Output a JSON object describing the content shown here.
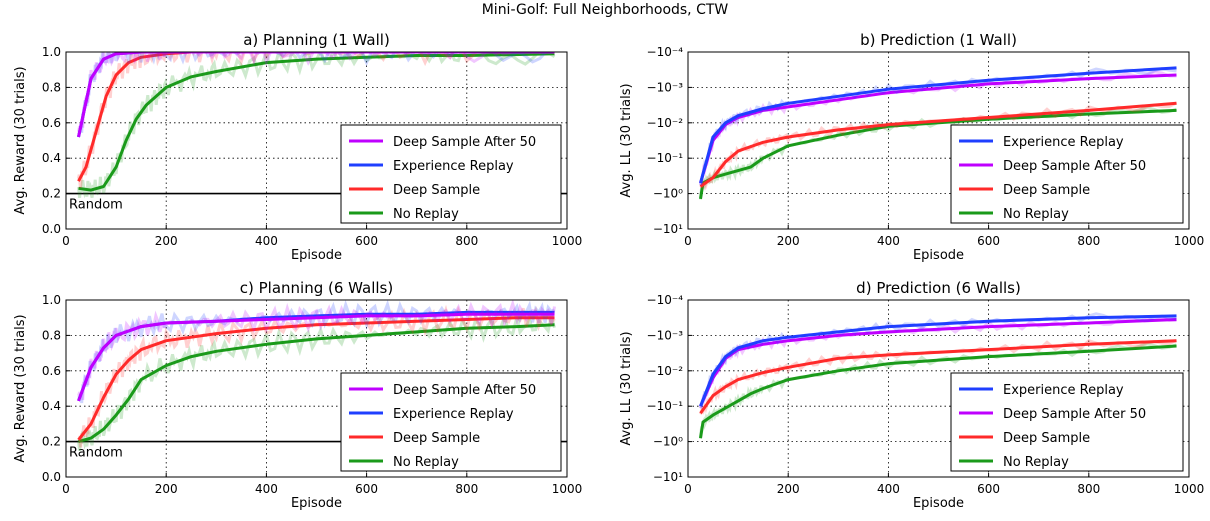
{
  "suptitle": "Mini-Golf: Full Neighborhoods, CTW",
  "chart_data": [
    {
      "type": "line",
      "title": "a) Planning (1 Wall)",
      "xlabel": "Episode",
      "ylabel": "Avg. Reward (30 trials)",
      "xlim": [
        0,
        1000
      ],
      "ylim": [
        0,
        1.0
      ],
      "xticks": [
        "0",
        "200",
        "400",
        "600",
        "800",
        "1000"
      ],
      "yticks": [
        "0.0",
        "0.2",
        "0.4",
        "0.6",
        "0.8",
        "1.0"
      ],
      "grid": true,
      "legend_position": "lower-right",
      "reference_line": {
        "label": "Random",
        "y": 0.2
      },
      "series": [
        {
          "name": "Deep Sample After 50",
          "color": "#bf00ff",
          "x": [
            25,
            50,
            75,
            100,
            150,
            200,
            300,
            400,
            600,
            800,
            975
          ],
          "y": [
            0.52,
            0.85,
            0.96,
            0.99,
            1.0,
            1.0,
            1.0,
            1.0,
            1.0,
            1.0,
            1.0
          ]
        },
        {
          "name": "Experience Replay",
          "color": "#1f3fff",
          "x": [
            25,
            50,
            75,
            100,
            150,
            200,
            300,
            400,
            600,
            800,
            975
          ],
          "y": [
            0.52,
            0.85,
            0.96,
            0.99,
            1.0,
            1.0,
            1.0,
            1.0,
            1.0,
            1.0,
            1.0
          ]
        },
        {
          "name": "Deep Sample",
          "color": "#ff2a2a",
          "x": [
            25,
            40,
            60,
            80,
            100,
            125,
            150,
            200,
            250,
            300,
            400,
            600,
            800,
            975
          ],
          "y": [
            0.27,
            0.35,
            0.55,
            0.75,
            0.87,
            0.94,
            0.97,
            0.99,
            1.0,
            1.0,
            1.0,
            1.0,
            1.0,
            1.0
          ]
        },
        {
          "name": "No Replay",
          "color": "#1a9a1a",
          "x": [
            25,
            50,
            75,
            100,
            120,
            140,
            160,
            180,
            200,
            250,
            300,
            400,
            500,
            600,
            700,
            800,
            975
          ],
          "y": [
            0.23,
            0.22,
            0.24,
            0.35,
            0.5,
            0.62,
            0.7,
            0.75,
            0.8,
            0.86,
            0.89,
            0.94,
            0.96,
            0.97,
            0.98,
            0.98,
            0.99
          ]
        }
      ]
    },
    {
      "type": "line",
      "title": "b) Prediction (1 Wall)",
      "xlabel": "Episode",
      "ylabel": "Avg. LL (30 trials)",
      "xlim": [
        0,
        1000
      ],
      "ylim": [
        1,
        -4
      ],
      "y_scale": "symlog (negative)",
      "xticks": [
        "0",
        "200",
        "400",
        "600",
        "800",
        "1000"
      ],
      "yticks": [
        "−10⁻⁴",
        "−10⁻³",
        "−10⁻²",
        "−10⁻¹",
        "−10⁰",
        "−10¹"
      ],
      "grid": true,
      "legend_position": "lower-right",
      "series": [
        {
          "name": "Experience Replay",
          "color": "#1f3fff",
          "x": [
            25,
            50,
            75,
            100,
            150,
            200,
            300,
            400,
            600,
            800,
            975
          ],
          "y": [
            -0.3,
            -1.6,
            -2.0,
            -2.2,
            -2.4,
            -2.55,
            -2.75,
            -2.95,
            -3.2,
            -3.4,
            -3.55
          ]
        },
        {
          "name": "Deep Sample After 50",
          "color": "#bf00ff",
          "x": [
            25,
            50,
            75,
            100,
            150,
            200,
            300,
            400,
            600,
            800,
            975
          ],
          "y": [
            -0.3,
            -1.5,
            -1.95,
            -2.15,
            -2.35,
            -2.45,
            -2.65,
            -2.85,
            -3.1,
            -3.25,
            -3.35
          ]
        },
        {
          "name": "Deep Sample",
          "color": "#ff2a2a",
          "x": [
            25,
            50,
            75,
            100,
            150,
            200,
            300,
            400,
            600,
            800,
            975
          ],
          "y": [
            -0.2,
            -0.45,
            -0.9,
            -1.2,
            -1.45,
            -1.6,
            -1.8,
            -1.95,
            -2.15,
            -2.35,
            -2.55
          ]
        },
        {
          "name": "No Replay",
          "color": "#1a9a1a",
          "x": [
            25,
            30,
            50,
            75,
            100,
            125,
            150,
            200,
            300,
            400,
            600,
            800,
            975
          ],
          "y": [
            0.15,
            -0.3,
            -0.45,
            -0.55,
            -0.65,
            -0.75,
            -1.0,
            -1.35,
            -1.65,
            -1.9,
            -2.1,
            -2.25,
            -2.35
          ]
        }
      ]
    },
    {
      "type": "line",
      "title": "c) Planning (6 Walls)",
      "xlabel": "Episode",
      "ylabel": "Avg. Reward (30 trials)",
      "xlim": [
        0,
        1000
      ],
      "ylim": [
        0,
        1.0
      ],
      "xticks": [
        "0",
        "200",
        "400",
        "600",
        "800",
        "1000"
      ],
      "yticks": [
        "0.0",
        "0.2",
        "0.4",
        "0.6",
        "0.8",
        "1.0"
      ],
      "grid": true,
      "legend_position": "lower-right",
      "reference_line": {
        "label": "Random",
        "y": 0.2
      },
      "series": [
        {
          "name": "Deep Sample After 50",
          "color": "#bf00ff",
          "x": [
            25,
            50,
            75,
            100,
            150,
            200,
            300,
            400,
            500,
            600,
            700,
            800,
            900,
            975
          ],
          "y": [
            0.43,
            0.62,
            0.73,
            0.8,
            0.85,
            0.87,
            0.88,
            0.89,
            0.9,
            0.91,
            0.91,
            0.92,
            0.92,
            0.92
          ]
        },
        {
          "name": "Experience Replay",
          "color": "#1f3fff",
          "x": [
            25,
            50,
            75,
            100,
            150,
            200,
            300,
            400,
            500,
            600,
            700,
            800,
            900,
            975
          ],
          "y": [
            0.43,
            0.62,
            0.73,
            0.8,
            0.85,
            0.87,
            0.88,
            0.9,
            0.91,
            0.92,
            0.92,
            0.93,
            0.93,
            0.93
          ]
        },
        {
          "name": "Deep Sample",
          "color": "#ff2a2a",
          "x": [
            25,
            50,
            75,
            100,
            125,
            150,
            200,
            250,
            300,
            400,
            500,
            600,
            700,
            800,
            900,
            975
          ],
          "y": [
            0.21,
            0.3,
            0.45,
            0.58,
            0.66,
            0.72,
            0.77,
            0.79,
            0.81,
            0.84,
            0.86,
            0.87,
            0.88,
            0.89,
            0.9,
            0.9
          ]
        },
        {
          "name": "No Replay",
          "color": "#1a9a1a",
          "x": [
            25,
            50,
            75,
            100,
            125,
            150,
            200,
            250,
            300,
            400,
            500,
            600,
            700,
            800,
            900,
            975
          ],
          "y": [
            0.2,
            0.22,
            0.27,
            0.35,
            0.44,
            0.55,
            0.63,
            0.68,
            0.71,
            0.75,
            0.78,
            0.8,
            0.82,
            0.84,
            0.85,
            0.86
          ]
        }
      ]
    },
    {
      "type": "line",
      "title": "d) Prediction (6 Walls)",
      "xlabel": "Episode",
      "ylabel": "Avg. LL (30 trials)",
      "xlim": [
        0,
        1000
      ],
      "ylim": [
        1,
        -4
      ],
      "y_scale": "symlog (negative)",
      "xticks": [
        "0",
        "200",
        "400",
        "600",
        "800",
        "1000"
      ],
      "yticks": [
        "−10⁻⁴",
        "−10⁻³",
        "−10⁻²",
        "−10⁻¹",
        "−10⁰",
        "−10¹"
      ],
      "grid": true,
      "legend_position": "lower-right",
      "series": [
        {
          "name": "Experience Replay",
          "color": "#1f3fff",
          "x": [
            25,
            50,
            75,
            100,
            150,
            200,
            300,
            400,
            600,
            800,
            975
          ],
          "y": [
            -1.0,
            -1.9,
            -2.4,
            -2.65,
            -2.85,
            -2.95,
            -3.1,
            -3.25,
            -3.4,
            -3.5,
            -3.55
          ]
        },
        {
          "name": "Deep Sample After 50",
          "color": "#bf00ff",
          "x": [
            25,
            50,
            75,
            100,
            150,
            200,
            300,
            400,
            600,
            800,
            975
          ],
          "y": [
            -1.0,
            -1.8,
            -2.35,
            -2.6,
            -2.75,
            -2.85,
            -3.0,
            -3.1,
            -3.25,
            -3.35,
            -3.45
          ]
        },
        {
          "name": "Deep Sample",
          "color": "#ff2a2a",
          "x": [
            25,
            50,
            75,
            100,
            150,
            200,
            300,
            400,
            600,
            800,
            975
          ],
          "y": [
            -0.8,
            -1.3,
            -1.55,
            -1.75,
            -1.95,
            -2.1,
            -2.35,
            -2.45,
            -2.6,
            -2.75,
            -2.85
          ]
        },
        {
          "name": "No Replay",
          "color": "#1a9a1a",
          "x": [
            25,
            30,
            50,
            75,
            100,
            125,
            150,
            200,
            300,
            400,
            600,
            800,
            975
          ],
          "y": [
            -0.1,
            -0.55,
            -0.75,
            -0.95,
            -1.15,
            -1.35,
            -1.5,
            -1.75,
            -2.0,
            -2.2,
            -2.4,
            -2.55,
            -2.7
          ]
        }
      ]
    }
  ]
}
